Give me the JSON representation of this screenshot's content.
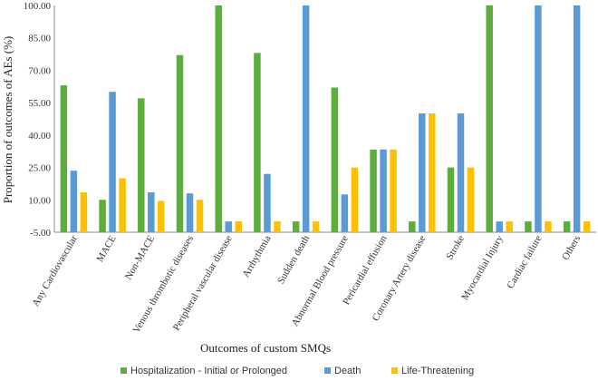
{
  "chart_data": {
    "type": "bar",
    "title": "",
    "xlabel": "Outcomes of custom SMQs",
    "ylabel": "Proportion of outcomes of AEs (%)",
    "ylim": [
      -5,
      100
    ],
    "yticks": [
      "-5.00",
      "10.00",
      "25.00",
      "40.00",
      "55.00",
      "70.00",
      "85.00",
      "100.00"
    ],
    "grid": false,
    "legend_position": "bottom",
    "categories": [
      "Any Cardiovascular",
      "MACE",
      "Non-MACE",
      "Venous thrombotic diseases",
      "Peripheral vascular disease",
      "Arrhythmia",
      "Sudden death",
      "Abnormal Blood pressure",
      "Pericardial effusion",
      "Coronary Artery disease",
      "Stroke",
      "Myocardial Injury",
      "Cardiac failure",
      "Others"
    ],
    "series": [
      {
        "name": "Hospitalization - Initial or Prolonged",
        "color": "#5cad3d",
        "values": [
          63,
          10,
          57,
          77,
          100,
          78,
          0,
          62,
          33.3,
          0,
          25,
          100,
          0,
          0
        ]
      },
      {
        "name": "Death",
        "color": "#5b9bd5",
        "values": [
          23.5,
          60,
          13.5,
          13,
          0,
          22,
          100,
          12.5,
          33.3,
          50,
          50,
          0,
          100,
          100
        ]
      },
      {
        "name": "Life-Threatening",
        "color": "#ffc000",
        "values": [
          13.5,
          20,
          9.5,
          10,
          0,
          0,
          0,
          25,
          33.3,
          50,
          25,
          0,
          0,
          0
        ]
      }
    ]
  }
}
